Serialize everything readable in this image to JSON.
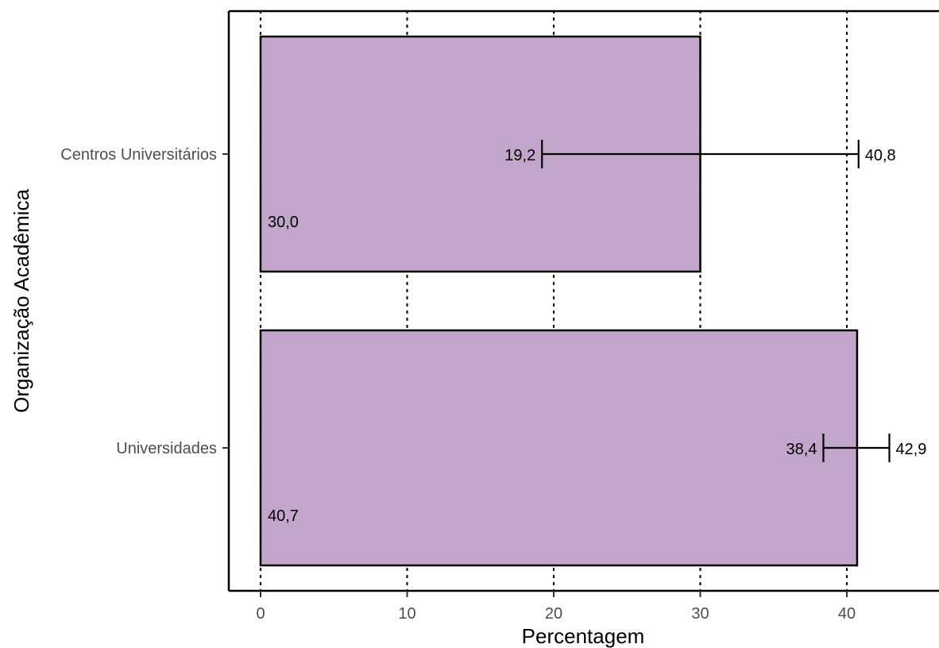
{
  "chart_data": {
    "type": "bar",
    "orientation": "horizontal",
    "categories": [
      "Centros Universitários",
      "Universidades"
    ],
    "values": [
      30.0,
      40.7
    ],
    "value_labels": [
      "30,0",
      "40,7"
    ],
    "error_bars": [
      {
        "low": 19.2,
        "high": 40.8,
        "low_label": "19,2",
        "high_label": "40,8"
      },
      {
        "low": 38.4,
        "high": 42.9,
        "low_label": "38,4",
        "high_label": "42,9"
      }
    ],
    "xlabel": "Percentagem",
    "ylabel": "Organização Acadêmica",
    "xlim": [
      -2.2,
      45.5
    ],
    "x_ticks": [
      0,
      10,
      20,
      30,
      40
    ],
    "x_tick_labels": [
      "0",
      "10",
      "20",
      "30",
      "40"
    ],
    "grid": "vertical dotted",
    "bar_color": "#c2a5cb",
    "bar_edge_color": "#000000"
  }
}
